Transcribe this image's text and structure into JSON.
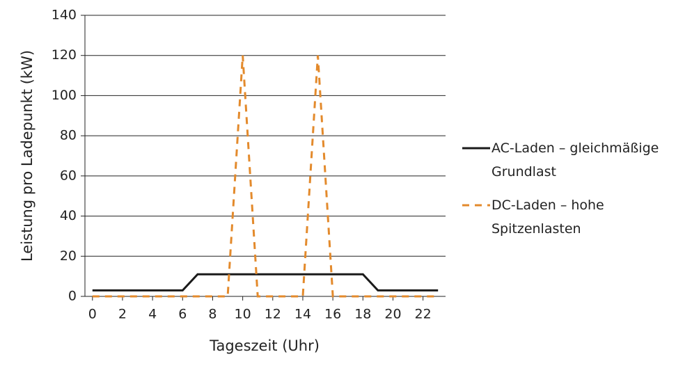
{
  "chart_data": {
    "type": "line",
    "x_label": "Tageszeit (Uhr)",
    "y_label": "Leistung pro Ladepunkt (kW)",
    "x": [
      0,
      1,
      2,
      3,
      4,
      5,
      6,
      7,
      8,
      9,
      10,
      11,
      12,
      13,
      14,
      15,
      16,
      17,
      18,
      19,
      20,
      21,
      22,
      23
    ],
    "xlim": [
      -0.5,
      23.5
    ],
    "xticks": [
      0,
      2,
      4,
      6,
      8,
      10,
      12,
      14,
      16,
      18,
      20,
      22
    ],
    "ylim": [
      0,
      140
    ],
    "yticks": [
      0,
      20,
      40,
      60,
      80,
      100,
      120,
      140
    ],
    "grid": true,
    "legend": "right",
    "series": [
      {
        "name": "AC-Laden – gleichmäßige Grundlast",
        "color": "#1a1a1a",
        "style": "solid",
        "values": [
          3,
          3,
          3,
          3,
          3,
          3,
          3,
          11,
          11,
          11,
          11,
          11,
          11,
          11,
          11,
          11,
          11,
          11,
          11,
          3,
          3,
          3,
          3,
          3
        ]
      },
      {
        "name": "DC-Laden – hohe Spitzenlasten",
        "color": "#e38a2c",
        "style": "dashed",
        "values": [
          0,
          0,
          0,
          0,
          0,
          0,
          0,
          0,
          0,
          0,
          120,
          0,
          0,
          0,
          0,
          120,
          0,
          0,
          0,
          0,
          0,
          0,
          0,
          0
        ]
      }
    ]
  }
}
